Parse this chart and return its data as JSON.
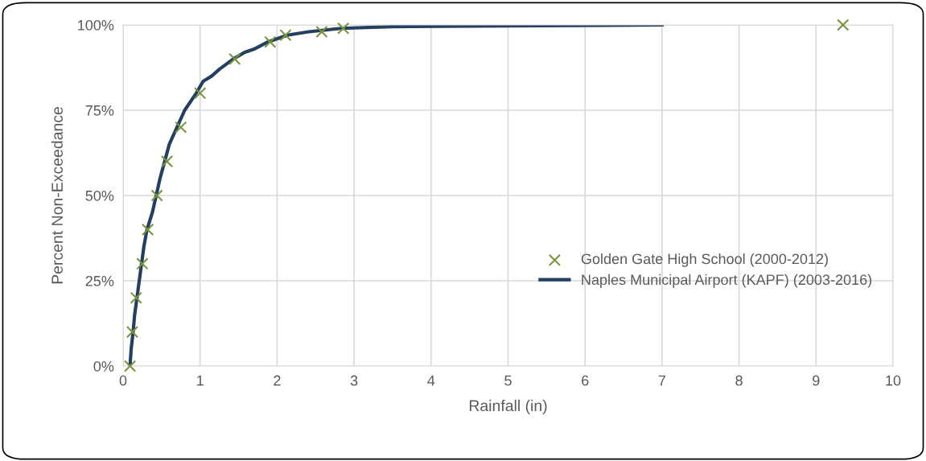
{
  "chart_data": {
    "type": "line",
    "xlabel": "Rainfall (in)",
    "ylabel": "Percent Non-Exceedance",
    "xlim": [
      0,
      10
    ],
    "xticks": [
      0,
      1,
      2,
      3,
      4,
      5,
      6,
      7,
      8,
      9,
      10
    ],
    "ylim": [
      0,
      100
    ],
    "yticks": [
      {
        "value": 0,
        "label": "0%"
      },
      {
        "value": 25,
        "label": "25%"
      },
      {
        "value": 50,
        "label": "50%"
      },
      {
        "value": 75,
        "label": "75%"
      },
      {
        "value": 100,
        "label": "100%"
      }
    ],
    "grid": true,
    "legend": "right",
    "series": [
      {
        "name": "Golden Gate High School (2000-2012)",
        "type": "scatter",
        "marker": "cross",
        "color": "#77933c",
        "x": [
          0.09,
          0.12,
          0.17,
          0.25,
          0.32,
          0.44,
          0.57,
          0.75,
          1.0,
          1.45,
          1.91,
          2.11,
          2.58,
          2.86,
          9.35
        ],
        "values": [
          0,
          10,
          20,
          30,
          40,
          50,
          60,
          70,
          80,
          90,
          95,
          97,
          98,
          99,
          100
        ]
      },
      {
        "name": "Naples Municipal Airport (KAPF) (2003-2016)",
        "marker": "none",
        "line_style": "solid",
        "color": "#243f60",
        "x": [
          0.09,
          0.105,
          0.13,
          0.15,
          0.18,
          0.21,
          0.24,
          0.27,
          0.31,
          0.38,
          0.43,
          0.48,
          0.54,
          0.6,
          0.8,
          0.95,
          1.04,
          1.15,
          1.25,
          1.43,
          1.58,
          1.71,
          1.88,
          2.13,
          2.41,
          2.83,
          3.5,
          5.0,
          7.0
        ],
        "values": [
          0,
          5,
          10,
          15,
          20,
          25,
          30,
          35,
          40,
          45,
          50,
          55,
          60,
          65,
          75,
          80,
          83.5,
          85,
          87,
          90,
          92,
          93,
          95,
          97,
          98,
          99,
          99.5,
          99.7,
          100
        ]
      }
    ]
  }
}
